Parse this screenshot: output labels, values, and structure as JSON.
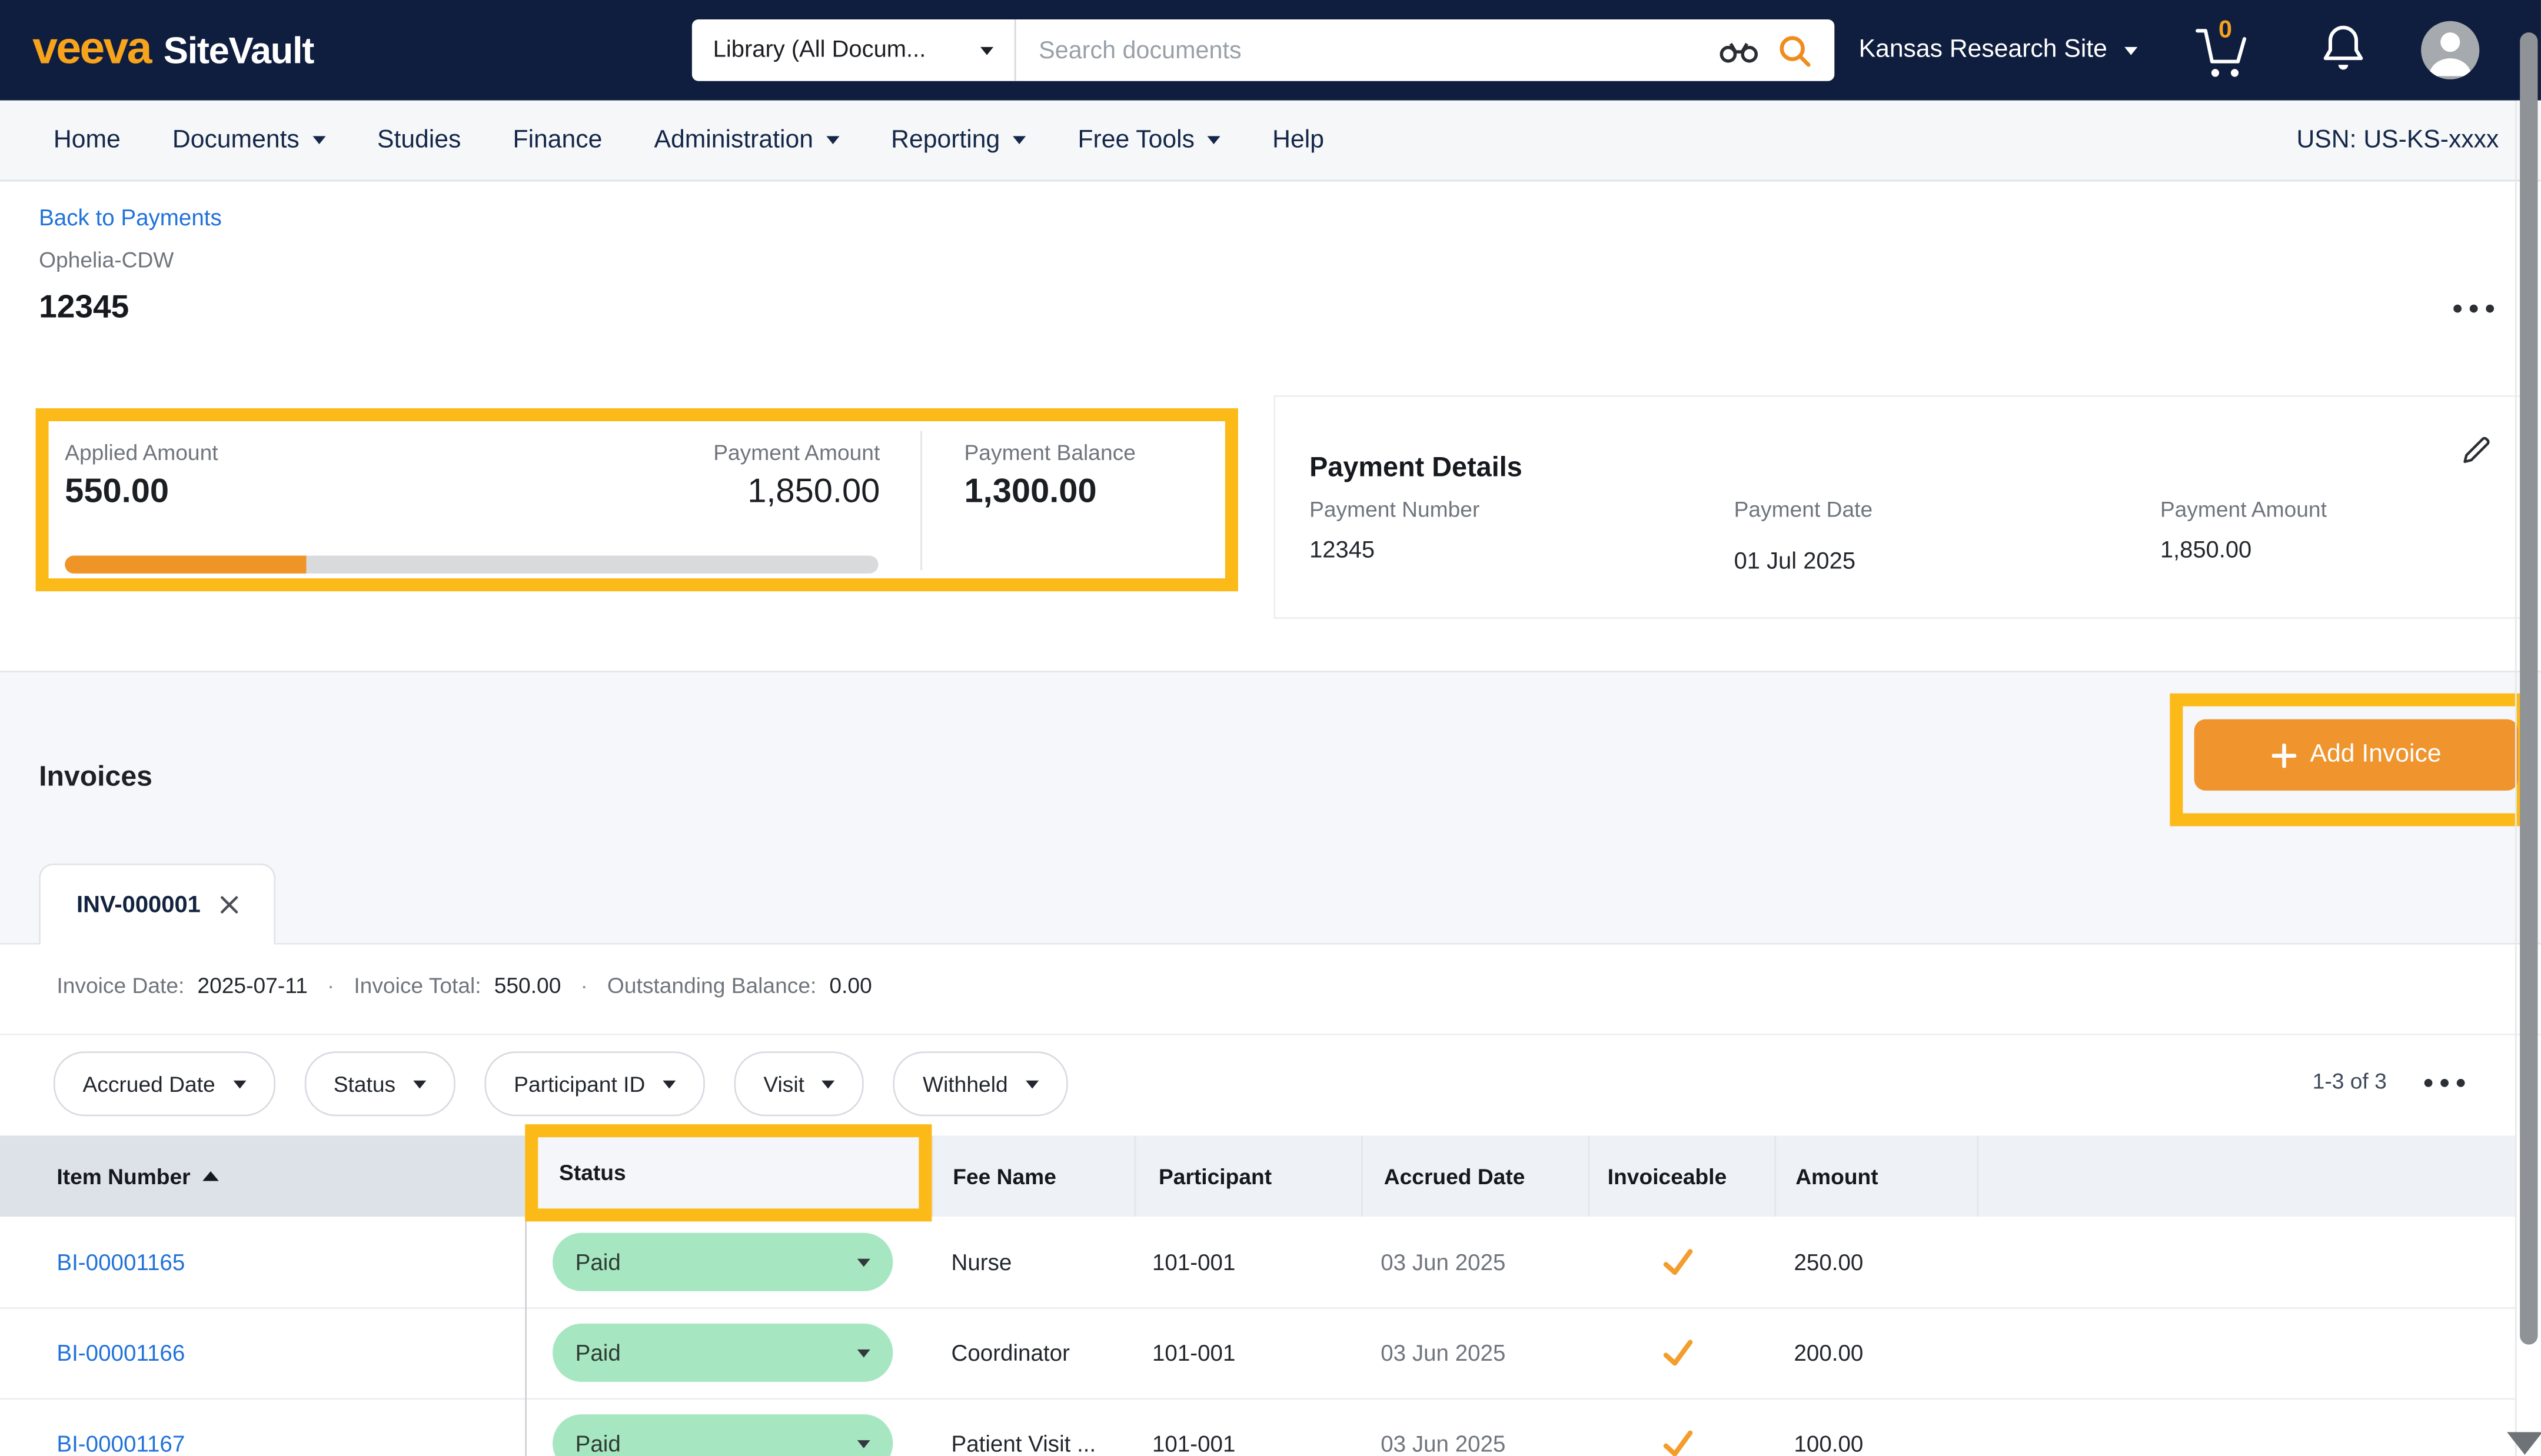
{
  "header": {
    "logo": {
      "brand": "veeva",
      "product": "SiteVault"
    },
    "search": {
      "scope": "Library (All Docum...",
      "placeholder": "Search documents"
    },
    "site_selector": "Kansas Research Site",
    "cart_count": "0"
  },
  "nav": {
    "items": [
      {
        "label": "Home"
      },
      {
        "label": "Documents"
      },
      {
        "label": "Studies"
      },
      {
        "label": "Finance"
      },
      {
        "label": "Administration"
      },
      {
        "label": "Reporting"
      },
      {
        "label": "Free Tools"
      },
      {
        "label": "Help"
      }
    ],
    "usn": "USN: US-KS-xxxx"
  },
  "breadcrumb": {
    "back_link": "Back to Payments",
    "study": "Ophelia-CDW",
    "payment_id": "12345"
  },
  "summary": {
    "applied_amount": {
      "label": "Applied Amount",
      "value": "550.00"
    },
    "payment_amount": {
      "label": "Payment Amount",
      "value": "1,850.00"
    },
    "payment_balance": {
      "label": "Payment Balance",
      "value": "1,300.00"
    },
    "progress_percent": 29.7
  },
  "payment_details": {
    "title": "Payment Details",
    "fields": [
      {
        "label": "Payment Number",
        "value": "12345"
      },
      {
        "label": "Payment Date",
        "value": "01 Jul 2025"
      },
      {
        "label": "Payment Amount",
        "value": "1,850.00"
      }
    ]
  },
  "invoices": {
    "section_title": "Invoices",
    "add_button": "Add Invoice",
    "tab": {
      "label": "INV-000001"
    },
    "meta": [
      {
        "label": "Invoice Date:",
        "value": "2025-07-11"
      },
      {
        "label": "Invoice Total:",
        "value": "550.00"
      },
      {
        "label": "Outstanding Balance:",
        "value": "0.00"
      }
    ],
    "filters": [
      "Accrued Date",
      "Status",
      "Participant ID",
      "Visit",
      "Withheld"
    ],
    "pagination": "1-3 of 3",
    "table": {
      "columns": [
        "Item Number",
        "Status",
        "Fee Name",
        "Participant",
        "Accrued Date",
        "Invoiceable",
        "Amount"
      ],
      "rows": [
        {
          "item_number": "BI-00001165",
          "status": "Paid",
          "fee_name": "Nurse",
          "participant": "101-001",
          "accrued_date": "03 Jun 2025",
          "invoiceable": true,
          "amount": "250.00"
        },
        {
          "item_number": "BI-00001166",
          "status": "Paid",
          "fee_name": "Coordinator",
          "participant": "101-001",
          "accrued_date": "03 Jun 2025",
          "invoiceable": true,
          "amount": "200.00"
        },
        {
          "item_number": "BI-00001167",
          "status": "Paid",
          "fee_name": "Patient Visit ...",
          "participant": "101-001",
          "accrued_date": "03 Jun 2025",
          "invoiceable": true,
          "amount": "100.00"
        }
      ]
    }
  },
  "colors": {
    "annotation_highlight": "#fcba19",
    "header_navy": "#0f1e3e",
    "brand_orange": "#f7a31c",
    "button_orange": "#f0942e",
    "progress_orange": "#ef9527",
    "status_paid_green": "#a6e7c1",
    "link_blue": "#2172d9",
    "check_orange": "#f49d2c"
  }
}
